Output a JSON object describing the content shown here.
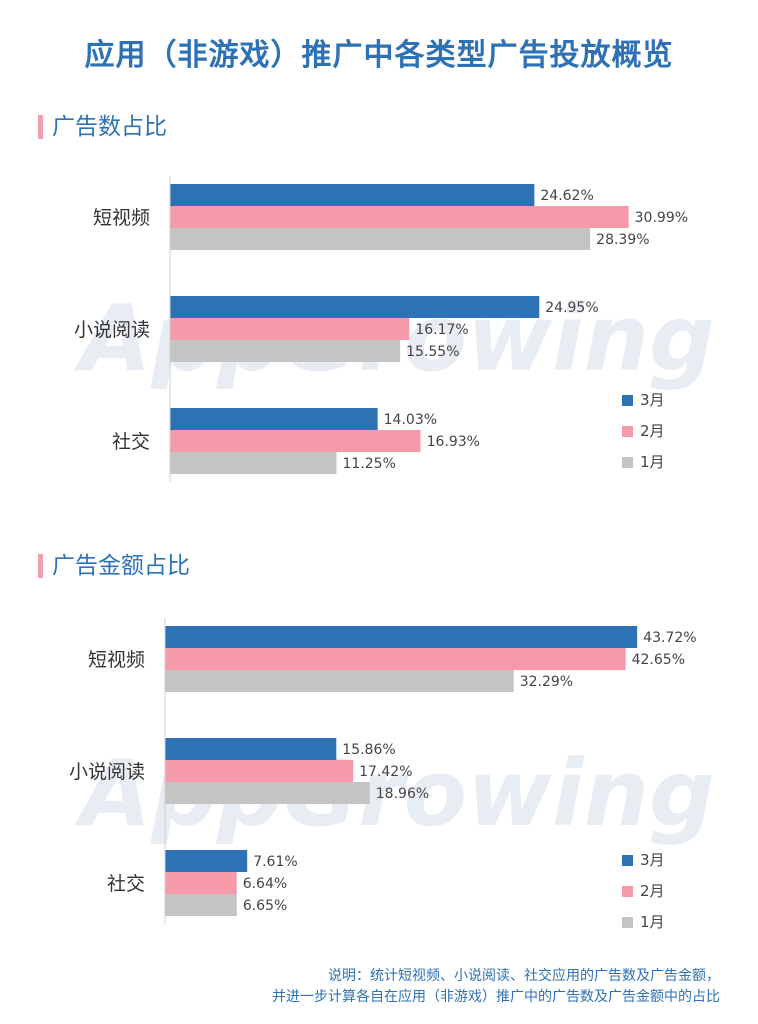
{
  "title": "应用（非游戏）推广中各类型广告投放概览",
  "note": {
    "line1": "说明：统计短视频、小说阅读、社交应用的广告数及广告金额，",
    "line2": "并进一步计算各自在应用（非游戏）推广中的广告数及广告金额中的占比"
  },
  "watermark": "AppGrowing",
  "colors": {
    "march": "#2E72B5",
    "feb": "#F69AAA",
    "jan": "#C4C4C4",
    "accent": "#F2A0AE",
    "title": "#2E72B5"
  },
  "chart_data": [
    {
      "type": "bar",
      "orientation": "horizontal",
      "title": "广告数占比",
      "categories": [
        "短视频",
        "小说阅读",
        "社交"
      ],
      "series": [
        {
          "name": "3月",
          "values": [
            24.62,
            24.95,
            14.03
          ]
        },
        {
          "name": "2月",
          "values": [
            30.99,
            16.17,
            16.93
          ]
        },
        {
          "name": "1月",
          "values": [
            28.39,
            15.55,
            11.25
          ]
        }
      ],
      "value_suffix": "%",
      "legend": "right",
      "grid": false
    },
    {
      "type": "bar",
      "orientation": "horizontal",
      "title": "广告金额占比",
      "categories": [
        "短视频",
        "小说阅读",
        "社交"
      ],
      "series": [
        {
          "name": "3月",
          "values": [
            43.72,
            15.86,
            7.61
          ]
        },
        {
          "name": "2月",
          "values": [
            42.65,
            17.42,
            6.64
          ]
        },
        {
          "name": "1月",
          "values": [
            32.29,
            18.96,
            6.65
          ]
        }
      ],
      "value_suffix": "%",
      "legend": "right",
      "grid": false
    }
  ]
}
